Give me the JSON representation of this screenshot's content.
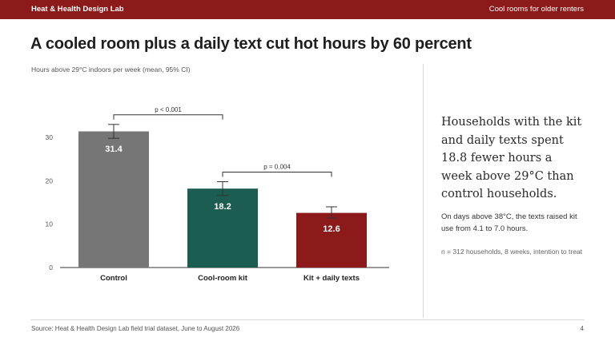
{
  "header": {
    "org": "Heat & Health Design Lab",
    "topic": "Cool rooms for older renters"
  },
  "title": "A cooled room plus a daily text cut hot hours by 60 percent",
  "subtitle": "Hours above 29°C indoors per week (mean, 95% CI)",
  "chart_data": {
    "type": "bar",
    "categories": [
      "Control",
      "Cool-room kit",
      "Kit + daily texts"
    ],
    "values": [
      31.4,
      18.2,
      12.6
    ],
    "ci_low": [
      29.8,
      16.6,
      11.4
    ],
    "ci_high": [
      33.0,
      19.8,
      14.0
    ],
    "data_labels": [
      "31.4",
      "18.2",
      "12.6"
    ],
    "colors": [
      "#767676",
      "#1b5e51",
      "#8c1a1a"
    ],
    "ylim": [
      0,
      35
    ],
    "yticks": [
      0,
      10,
      20,
      30
    ],
    "grid": false,
    "comparisons": [
      {
        "from": 0,
        "to": 1,
        "label": "p < 0.001"
      },
      {
        "from": 1,
        "to": 2,
        "label": "p = 0.004"
      }
    ]
  },
  "callout": {
    "headline": "Households with the kit and daily texts spent 18.8 fewer hours a week above 29°C than control households.",
    "detail": "On days above 38°C, the texts raised kit use from 4.1 to 7.0 hours.",
    "sample": "n = 312 households, 8 weeks, intention to treat"
  },
  "footer": {
    "source": "Source: Heat & Health Design Lab field trial dataset, June to August 2026",
    "page": "4"
  }
}
